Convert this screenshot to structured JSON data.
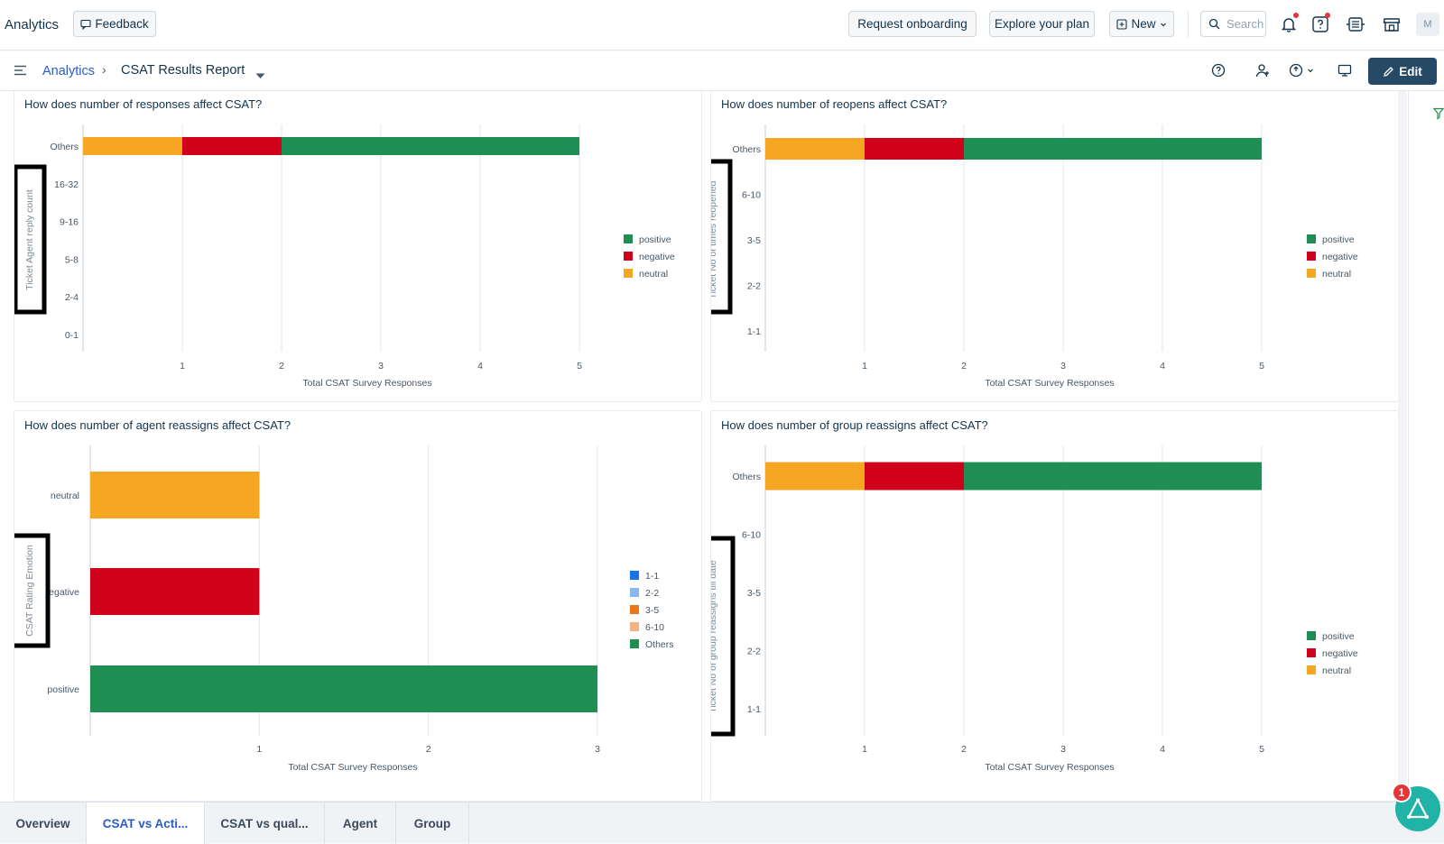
{
  "header": {
    "app_title": "Analytics",
    "feedback_label": "Feedback",
    "request_onboarding_label": "Request onboarding",
    "explore_plan_label": "Explore your plan",
    "new_label": "New",
    "search_placeholder": "Search",
    "avatar_initial": "M"
  },
  "breadcrumb": {
    "parent": "Analytics",
    "separator": "›",
    "current": "CSAT Results Report"
  },
  "toolbar": {
    "edit_label": "Edit"
  },
  "colors": {
    "positive": "#1e8e52",
    "negative": "#d0021b",
    "neutral": "#f5a623",
    "accent": "#2c5cc5",
    "edit_bg": "#264966"
  },
  "charts": [
    {
      "title": "How does number of responses affect CSAT?",
      "ylabel": "Ticket Agent reply count",
      "xlabel": "Total CSAT Survey Responses",
      "legend": [
        "positive",
        "negative",
        "neutral"
      ]
    },
    {
      "title": "How does number of reopens affect CSAT?",
      "ylabel": "Ticket No of times reopened",
      "xlabel": "Total CSAT Survey Responses",
      "legend": [
        "positive",
        "negative",
        "neutral"
      ]
    },
    {
      "title": "How does number of agent reassigns affect CSAT?",
      "ylabel": "CSAT Rating Emotion",
      "xlabel": "Total CSAT Survey Responses",
      "legend": [
        "1-1",
        "2-2",
        "3-5",
        "6-10",
        "Others"
      ]
    },
    {
      "title": "How does number of group reassigns affect CSAT?",
      "ylabel": "Ticket No of group reassigns till date",
      "xlabel": "Total CSAT Survey Responses",
      "legend": [
        "positive",
        "negative",
        "neutral"
      ]
    }
  ],
  "chart_data": [
    {
      "type": "bar",
      "orientation": "horizontal",
      "stacked": true,
      "title": "How does number of responses affect CSAT?",
      "xlabel": "Total CSAT Survey Responses",
      "ylabel": "Ticket Agent reply count",
      "categories": [
        "Others",
        "16-32",
        "9-16",
        "5-8",
        "2-4",
        "0-1"
      ],
      "series": [
        {
          "name": "neutral",
          "color": "#f5a623",
          "values": [
            1,
            0,
            0,
            0,
            0,
            0
          ]
        },
        {
          "name": "negative",
          "color": "#d0021b",
          "values": [
            1,
            0,
            0,
            0,
            0,
            0
          ]
        },
        {
          "name": "positive",
          "color": "#1e8e52",
          "values": [
            3,
            0,
            0,
            0,
            0,
            0
          ]
        }
      ],
      "xticks": [
        1,
        2,
        3,
        4,
        5
      ],
      "xlim": [
        0,
        5
      ],
      "grid": true,
      "legend_position": "right"
    },
    {
      "type": "bar",
      "orientation": "horizontal",
      "stacked": true,
      "title": "How does number of reopens affect CSAT?",
      "xlabel": "Total CSAT Survey Responses",
      "ylabel": "Ticket No of times reopened",
      "categories": [
        "Others",
        "6-10",
        "3-5",
        "2-2",
        "1-1"
      ],
      "series": [
        {
          "name": "neutral",
          "color": "#f5a623",
          "values": [
            1,
            0,
            0,
            0,
            0
          ]
        },
        {
          "name": "negative",
          "color": "#d0021b",
          "values": [
            1,
            0,
            0,
            0,
            0
          ]
        },
        {
          "name": "positive",
          "color": "#1e8e52",
          "values": [
            3,
            0,
            0,
            0,
            0
          ]
        }
      ],
      "xticks": [
        1,
        2,
        3,
        4,
        5
      ],
      "xlim": [
        0,
        5
      ],
      "grid": true,
      "legend_position": "right"
    },
    {
      "type": "bar",
      "orientation": "horizontal",
      "stacked": true,
      "title": "How does number of agent reassigns affect CSAT?",
      "xlabel": "Total CSAT Survey Responses",
      "ylabel": "CSAT Rating Emotion",
      "categories": [
        "neutral",
        "negative",
        "positive"
      ],
      "bar_colors": [
        "#f5a623",
        "#d0021b",
        "#1e8e52"
      ],
      "legend_items": [
        {
          "name": "1-1",
          "color": "#1a73e8"
        },
        {
          "name": "2-2",
          "color": "#8ab8f0"
        },
        {
          "name": "3-5",
          "color": "#e8771e"
        },
        {
          "name": "6-10",
          "color": "#f4b183"
        },
        {
          "name": "Others",
          "color": "#1e8e52"
        }
      ],
      "values": [
        1,
        1,
        3
      ],
      "xticks": [
        1,
        2,
        3
      ],
      "xlim": [
        0,
        3
      ],
      "grid": true,
      "legend_position": "right"
    },
    {
      "type": "bar",
      "orientation": "horizontal",
      "stacked": true,
      "title": "How does number of group reassigns affect CSAT?",
      "xlabel": "Total CSAT Survey Responses",
      "ylabel": "Ticket No of group reassigns till date",
      "categories": [
        "Others",
        "6-10",
        "3-5",
        "2-2",
        "1-1"
      ],
      "series": [
        {
          "name": "neutral",
          "color": "#f5a623",
          "values": [
            1,
            0,
            0,
            0,
            0
          ]
        },
        {
          "name": "negative",
          "color": "#d0021b",
          "values": [
            1,
            0,
            0,
            0,
            0
          ]
        },
        {
          "name": "positive",
          "color": "#1e8e52",
          "values": [
            3,
            0,
            0,
            0,
            0
          ]
        }
      ],
      "xticks": [
        1,
        2,
        3,
        4,
        5
      ],
      "xlim": [
        0,
        5
      ],
      "grid": true,
      "legend_position": "right"
    }
  ],
  "tabs": [
    {
      "label": "Overview",
      "active": false
    },
    {
      "label": "CSAT vs Acti...",
      "active": true
    },
    {
      "label": "CSAT vs qual...",
      "active": false
    },
    {
      "label": "Agent",
      "active": false
    },
    {
      "label": "Group",
      "active": false
    }
  ],
  "fab": {
    "badge_count": "1"
  }
}
